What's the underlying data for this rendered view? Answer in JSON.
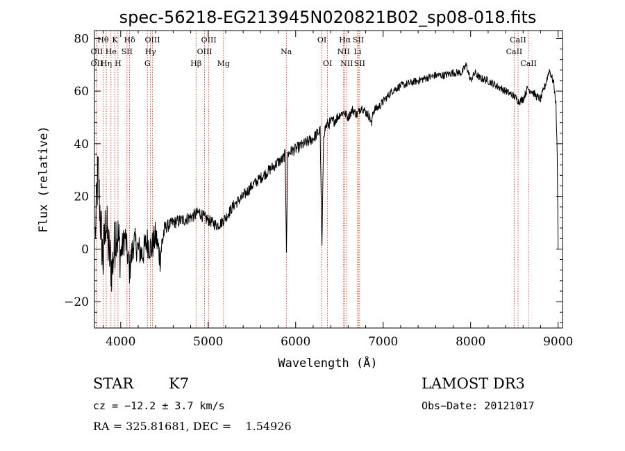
{
  "chart_data": {
    "type": "line",
    "title": "spec-56218-EG213945N020821B02_sp08-018.fits",
    "xlabel": "Wavelength (Å)",
    "ylabel": "Flux (relative)",
    "xlim": [
      3700,
      9050
    ],
    "ylim": [
      -30,
      83
    ],
    "xticks": [
      4000,
      5000,
      6000,
      7000,
      8000,
      9000
    ],
    "yticks": [
      -20,
      0,
      20,
      40,
      60,
      80
    ],
    "ytick_labels": [
      "−20",
      "0",
      "20",
      "40",
      "60",
      "80"
    ],
    "series": [
      {
        "name": "flux",
        "x": [
          3710,
          3740,
          3770,
          3800,
          3830,
          3860,
          3900,
          3950,
          4000,
          4050,
          4100,
          4150,
          4200,
          4250,
          4300,
          4350,
          4400,
          4450,
          4500,
          4600,
          4700,
          4800,
          4850,
          4900,
          4950,
          5000,
          5050,
          5100,
          5150,
          5200,
          5300,
          5400,
          5500,
          5600,
          5700,
          5800,
          5850,
          5880,
          5895,
          5910,
          5940,
          6000,
          6100,
          6200,
          6250,
          6280,
          6300,
          6320,
          6350,
          6400,
          6450,
          6500,
          6550,
          6600,
          6650,
          6700,
          6750,
          6800,
          6850,
          6870,
          6880,
          6900,
          6950,
          7000,
          7050,
          7100,
          7150,
          7200,
          7300,
          7400,
          7500,
          7600,
          7700,
          7800,
          7900,
          7950,
          8000,
          8050,
          8100,
          8200,
          8300,
          8400,
          8450,
          8500,
          8550,
          8600,
          8650,
          8700,
          8750,
          8800,
          8850,
          8900,
          8950,
          8975,
          8990,
          9000
        ],
        "y": [
          5,
          30,
          10,
          -5,
          12,
          0,
          -8,
          8,
          -2,
          5,
          -8,
          3,
          0,
          -2,
          3,
          0,
          5,
          -3,
          8,
          10,
          11,
          12,
          13,
          14,
          12,
          11,
          10,
          9,
          10,
          12,
          17,
          20,
          24,
          27,
          30,
          33,
          34,
          36,
          0,
          36,
          37,
          38,
          40,
          42,
          44,
          45,
          0,
          44,
          47,
          48,
          49,
          51,
          52,
          50,
          53,
          51,
          54,
          52,
          50,
          47,
          52,
          53,
          54,
          56,
          58,
          60,
          61,
          62,
          63,
          64,
          65,
          66,
          66,
          67,
          67,
          70,
          64,
          67,
          65,
          64,
          62,
          60,
          59,
          58,
          56,
          57,
          61,
          60,
          58,
          57,
          62,
          68,
          63,
          55,
          35,
          0
        ]
      }
    ],
    "lines": [
      {
        "label": "Hθ",
        "x": 3798,
        "row": 0
      },
      {
        "label": "OII",
        "x": 3727,
        "row": 1
      },
      {
        "label": "OII",
        "x": 3727,
        "row": 2
      },
      {
        "label": "He",
        "x": 3889,
        "row": 1
      },
      {
        "label": "Hη",
        "x": 3835,
        "row": 2
      },
      {
        "label": "K",
        "x": 3934,
        "row": 0
      },
      {
        "label": "SII",
        "x": 4072,
        "row": 1
      },
      {
        "label": "H",
        "x": 3969,
        "row": 2
      },
      {
        "label": "Hδ",
        "x": 4102,
        "row": 0
      },
      {
        "label": "OIII",
        "x": 4363,
        "row": 0
      },
      {
        "label": "Hγ",
        "x": 4340,
        "row": 1
      },
      {
        "label": "G",
        "x": 4305,
        "row": 2
      },
      {
        "label": "Hβ",
        "x": 4861,
        "row": 2
      },
      {
        "label": "OIII",
        "x": 5007,
        "row": 0
      },
      {
        "label": "OIII",
        "x": 4959,
        "row": 1
      },
      {
        "label": "Mg",
        "x": 5175,
        "row": 2
      },
      {
        "label": "Na",
        "x": 5893,
        "row": 1
      },
      {
        "label": "OI",
        "x": 6300,
        "row": 0
      },
      {
        "label": "OI",
        "x": 6364,
        "row": 2
      },
      {
        "label": "Hα",
        "x": 6563,
        "row": 0
      },
      {
        "label": "NII",
        "x": 6548,
        "row": 1
      },
      {
        "label": "NII",
        "x": 6584,
        "row": 2
      },
      {
        "label": "SII",
        "x": 6717,
        "row": 0
      },
      {
        "label": "Li",
        "x": 6708,
        "row": 1
      },
      {
        "label": "SII",
        "x": 6731,
        "row": 2
      },
      {
        "label": "CaII",
        "x": 8542,
        "row": 0
      },
      {
        "label": "CaII",
        "x": 8498,
        "row": 1
      },
      {
        "label": "CaII",
        "x": 8662,
        "row": 2
      }
    ]
  },
  "info": {
    "obj_class": "STAR",
    "subclass": "K7",
    "survey": "LAMOST DR3",
    "cz": "cz = −12.2 ± 3.7 km/s",
    "obs_date": "Obs−Date: 20121017",
    "radec": "RA = 325.81681, DEC =    1.54926"
  },
  "colors": {
    "axis": "#000000",
    "line_marker": "#cc2200",
    "spectrum": "#000000"
  }
}
